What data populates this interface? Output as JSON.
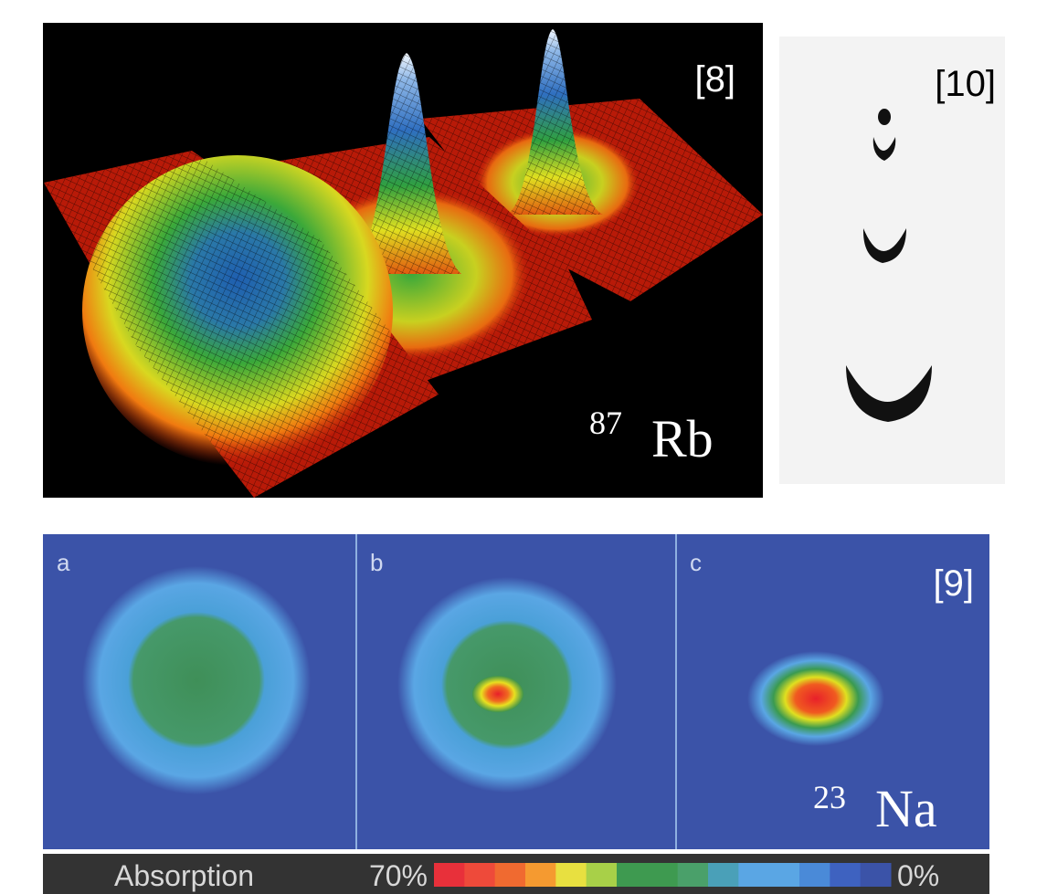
{
  "top_left": {
    "ref": "[8]",
    "isotope_mass": "87",
    "isotope_symbol": "Rb"
  },
  "top_right": {
    "ref": "[10]"
  },
  "bottom": {
    "panels": [
      "a",
      "b",
      "c"
    ],
    "ref": "[9]",
    "isotope_mass": "23",
    "isotope_symbol": "Na",
    "colorbar": {
      "label": "Absorption",
      "max_label": "70%",
      "min_label": "0%"
    }
  }
}
